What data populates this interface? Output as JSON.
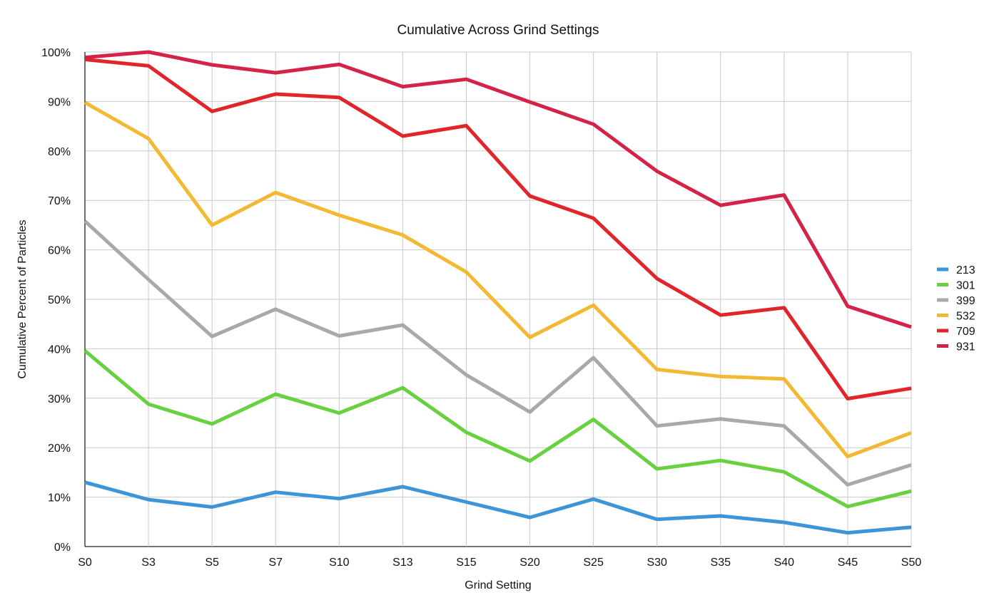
{
  "chart_data": {
    "type": "line",
    "title": "Cumulative Across Grind Settings",
    "xlabel": "Grind Setting",
    "ylabel": "Cumulative Percent of Particles",
    "ylim": [
      0,
      100
    ],
    "y_ticks": [
      0,
      10,
      20,
      30,
      40,
      50,
      60,
      70,
      80,
      90,
      100
    ],
    "y_tick_labels": [
      "0%",
      "10%",
      "20%",
      "30%",
      "40%",
      "50%",
      "60%",
      "70%",
      "80%",
      "90%",
      "100%"
    ],
    "categories": [
      "S0",
      "S3",
      "S5",
      "S7",
      "S10",
      "S13",
      "S15",
      "S20",
      "S25",
      "S30",
      "S35",
      "S40",
      "S45",
      "S50"
    ],
    "grid": true,
    "legend_position": "right",
    "series": [
      {
        "name": "213",
        "color": "#3c95d6",
        "values": [
          13.0,
          9.5,
          8.0,
          11.0,
          9.7,
          12.1,
          9.0,
          5.9,
          9.6,
          5.5,
          6.2,
          4.9,
          2.8,
          3.9
        ]
      },
      {
        "name": "301",
        "color": "#67d13f",
        "values": [
          39.6,
          28.8,
          24.8,
          30.8,
          27.0,
          32.1,
          23.1,
          17.3,
          25.7,
          15.7,
          17.4,
          15.1,
          8.1,
          11.2
        ]
      },
      {
        "name": "399",
        "color": "#a9a9a5",
        "values": [
          65.8,
          54.0,
          42.5,
          48.0,
          42.6,
          44.8,
          34.7,
          27.2,
          38.2,
          24.4,
          25.8,
          24.4,
          12.5,
          16.5
        ]
      },
      {
        "name": "532",
        "color": "#f3b933",
        "values": [
          89.8,
          82.5,
          65.0,
          71.6,
          67.0,
          63.0,
          55.5,
          42.3,
          48.8,
          35.8,
          34.4,
          33.9,
          18.2,
          23.0
        ]
      },
      {
        "name": "709",
        "color": "#e0252b",
        "values": [
          98.5,
          97.2,
          88.0,
          91.5,
          90.8,
          83.0,
          85.1,
          70.9,
          66.4,
          54.2,
          46.8,
          48.3,
          29.9,
          32.0
        ]
      },
      {
        "name": "931",
        "color": "#d42347",
        "values": [
          98.9,
          100.0,
          97.4,
          95.8,
          97.5,
          93.0,
          94.5,
          89.9,
          85.4,
          75.9,
          69.0,
          71.1,
          48.6,
          44.4
        ]
      }
    ]
  }
}
